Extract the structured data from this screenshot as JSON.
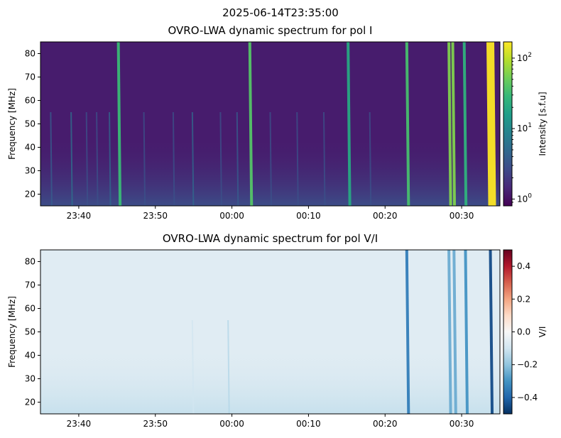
{
  "suptitle": "2025-06-14T23:35:00",
  "chart_data": [
    {
      "type": "heatmap",
      "title": "OVRO-LWA dynamic spectrum for pol I",
      "xlabel": "",
      "ylabel": "Frequency [MHz]",
      "x_ticks": [
        "23:40",
        "23:50",
        "00:00",
        "00:10",
        "00:20",
        "00:30"
      ],
      "x_range": [
        "23:35",
        "00:35"
      ],
      "y_ticks": [
        20,
        30,
        40,
        50,
        60,
        70,
        80
      ],
      "ylim": [
        15,
        85
      ],
      "colormap": "viridis",
      "colorbar": {
        "label": "Intensity [s.f.u]",
        "scale": "log",
        "range": [
          0.8,
          170
        ],
        "ticks": [
          {
            "base": "10",
            "exp": "0",
            "value": 1
          },
          {
            "base": "10",
            "exp": "1",
            "value": 10
          },
          {
            "base": "10",
            "exp": "2",
            "value": 100
          }
        ]
      },
      "bursts": [
        {
          "time": "23:36:20",
          "intensity": 4
        },
        {
          "time": "23:39:00",
          "intensity": 6
        },
        {
          "time": "23:41:00",
          "intensity": 3
        },
        {
          "time": "23:42:20",
          "intensity": 3
        },
        {
          "time": "23:44:00",
          "intensity": 5
        },
        {
          "time": "23:45:10",
          "intensity": 30
        },
        {
          "time": "23:48:30",
          "intensity": 3
        },
        {
          "time": "23:52:20",
          "intensity": 3
        },
        {
          "time": "23:54:50",
          "intensity": 5
        },
        {
          "time": "23:58:30",
          "intensity": 3
        },
        {
          "time": "00:00:40",
          "intensity": 4
        },
        {
          "time": "00:02:20",
          "intensity": 40
        },
        {
          "time": "00:05:00",
          "intensity": 3
        },
        {
          "time": "00:08:30",
          "intensity": 3
        },
        {
          "time": "00:12:00",
          "intensity": 3
        },
        {
          "time": "00:15:10",
          "intensity": 20
        },
        {
          "time": "00:18:00",
          "intensity": 3
        },
        {
          "time": "00:22:50",
          "intensity": 35
        },
        {
          "time": "00:28:20",
          "intensity": 60
        },
        {
          "time": "00:28:50",
          "intensity": 60
        },
        {
          "time": "00:30:20",
          "intensity": 25
        },
        {
          "time": "00:33:45",
          "intensity": 170
        }
      ]
    },
    {
      "type": "heatmap",
      "title": "OVRO-LWA dynamic spectrum for pol V/I",
      "xlabel": "",
      "ylabel": "Frequency [MHz]",
      "x_ticks": [
        "23:40",
        "23:50",
        "00:00",
        "00:10",
        "00:20",
        "00:30"
      ],
      "x_range": [
        "23:35",
        "00:35"
      ],
      "y_ticks": [
        20,
        30,
        40,
        50,
        60,
        70,
        80
      ],
      "ylim": [
        15,
        85
      ],
      "colormap": "RdBu_r",
      "colorbar": {
        "label": "V/I",
        "scale": "linear",
        "range": [
          -0.5,
          0.5
        ],
        "ticks": [
          {
            "label": "0.4",
            "value": 0.4
          },
          {
            "label": "0.2",
            "value": 0.2
          },
          {
            "label": "0.0",
            "value": 0.0
          },
          {
            "label": "−0.2",
            "value": -0.2
          },
          {
            "label": "−0.4",
            "value": -0.4
          }
        ]
      },
      "bursts": [
        {
          "time": "23:54:50",
          "v_over_i": -0.1
        },
        {
          "time": "23:59:30",
          "v_over_i": -0.15
        },
        {
          "time": "00:22:50",
          "v_over_i": -0.35
        },
        {
          "time": "00:28:20",
          "v_over_i": -0.25
        },
        {
          "time": "00:29:00",
          "v_over_i": -0.25
        },
        {
          "time": "00:30:30",
          "v_over_i": -0.3
        },
        {
          "time": "00:33:45",
          "v_over_i": -0.45
        }
      ]
    }
  ]
}
